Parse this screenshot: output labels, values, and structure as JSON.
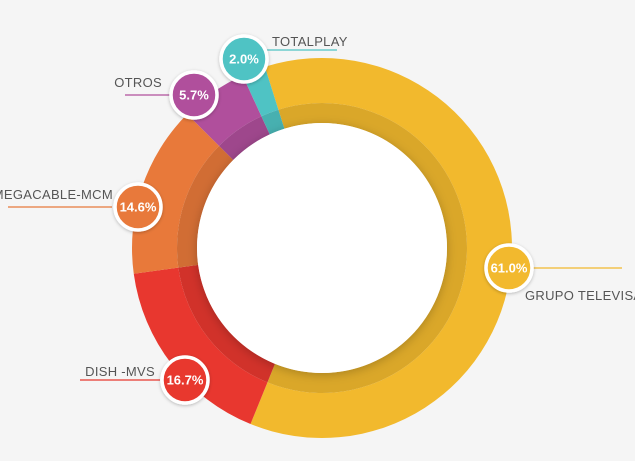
{
  "chart_data": {
    "type": "pie",
    "variant": "donut",
    "title": "",
    "slices": [
      {
        "label": "GRUPO TELEVISA",
        "value": 61.0,
        "display": "61.0%",
        "color": "#F2B92D"
      },
      {
        "label": "DISH -MVS",
        "value": 16.7,
        "display": "16.7%",
        "color": "#E8372F"
      },
      {
        "label": "MEGACABLE-MCM",
        "value": 14.6,
        "display": "14.6%",
        "color": "#E8793A"
      },
      {
        "label": "OTROS",
        "value": 5.7,
        "display": "5.7%",
        "color": "#B04F9C"
      },
      {
        "label": "TOTALPLAY",
        "value": 2.0,
        "display": "2.0%",
        "color": "#4FC3C4"
      }
    ]
  }
}
